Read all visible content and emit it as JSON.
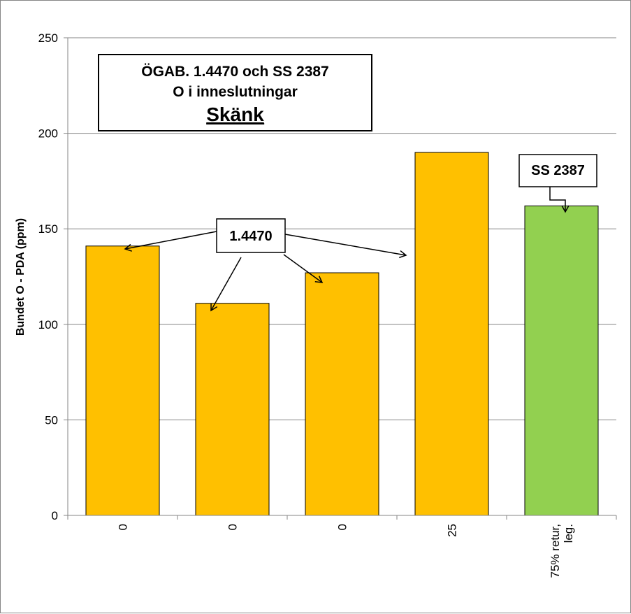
{
  "chart_data": {
    "type": "bar",
    "title_lines": [
      "ÖGAB. 1.4470 och SS 2387",
      "O i inneslutningar",
      "Skänk"
    ],
    "ylabel": "Bundet O - PDA (ppm)",
    "xlabel": "",
    "ylim": [
      0,
      250
    ],
    "yticks": [
      0,
      50,
      100,
      150,
      200,
      250
    ],
    "grid": true,
    "categories": [
      [
        "0"
      ],
      [
        "0"
      ],
      [
        "0"
      ],
      [
        "25"
      ],
      [
        "75% retur,",
        "leg."
      ]
    ],
    "values": [
      141,
      111,
      127,
      190,
      162
    ],
    "bar_colors": [
      "#FFC000",
      "#FFC000",
      "#FFC000",
      "#FFC000",
      "#92D050"
    ],
    "annotations": [
      {
        "text": "1.4470",
        "points_to_bars": [
          0,
          1,
          2,
          3
        ]
      },
      {
        "text": "SS 2387",
        "points_to_bars": [
          4
        ]
      }
    ]
  }
}
